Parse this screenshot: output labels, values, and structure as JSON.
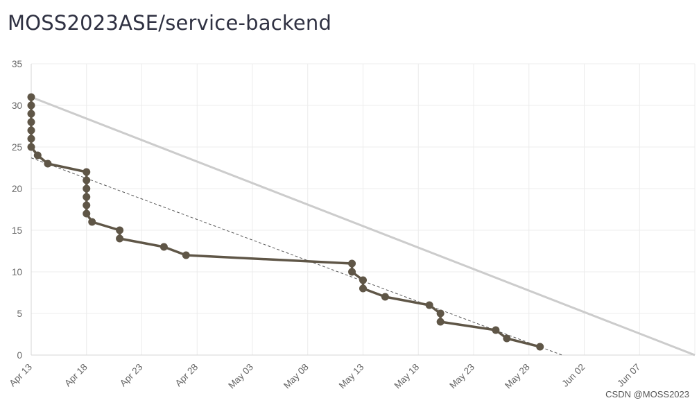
{
  "page": {
    "title": "MOSS2023ASE/service-backend",
    "watermark": "CSDN @MOSS2023"
  },
  "chart_data": {
    "type": "line",
    "title": "MOSS2023ASE/service-backend",
    "xlabel": "",
    "ylabel": "",
    "x_start_label": "Apr 13",
    "x_tick_labels": [
      "Apr 13",
      "Apr 18",
      "Apr 23",
      "Apr 28",
      "May 03",
      "May 08",
      "May 13",
      "May 18",
      "May 23",
      "May 28",
      "Jun 02",
      "Jun 07"
    ],
    "xlim": [
      "2023-04-13",
      "2023-06-12"
    ],
    "ylim": [
      0,
      35
    ],
    "y_ticks": [
      0,
      5,
      10,
      15,
      20,
      25,
      30,
      35
    ],
    "grid": true,
    "colors": {
      "actual": "#5f5647",
      "ideal": "#cccccc",
      "trend": "#555555"
    },
    "series": [
      {
        "style": "actual",
        "points": [
          [
            "2023-04-13",
            31
          ],
          [
            "2023-04-13",
            30
          ],
          [
            "2023-04-13",
            29
          ],
          [
            "2023-04-13",
            28
          ],
          [
            "2023-04-13",
            27
          ],
          [
            "2023-04-13",
            26
          ],
          [
            "2023-04-13",
            25
          ],
          [
            "2023-04-13T14:00",
            24
          ],
          [
            "2023-04-14T12:00",
            23
          ],
          [
            "2023-04-18",
            22
          ],
          [
            "2023-04-18",
            21
          ],
          [
            "2023-04-18",
            20
          ],
          [
            "2023-04-18",
            19
          ],
          [
            "2023-04-18",
            18
          ],
          [
            "2023-04-18",
            17
          ],
          [
            "2023-04-18T12:00",
            16
          ],
          [
            "2023-04-21",
            15
          ],
          [
            "2023-04-21",
            14
          ],
          [
            "2023-04-25",
            13
          ],
          [
            "2023-04-27",
            12
          ],
          [
            "2023-05-12",
            11
          ],
          [
            "2023-05-12",
            10
          ],
          [
            "2023-05-13",
            9
          ],
          [
            "2023-05-13",
            8
          ],
          [
            "2023-05-15",
            7
          ],
          [
            "2023-05-19",
            6
          ],
          [
            "2023-05-20",
            5
          ],
          [
            "2023-05-20",
            4
          ],
          [
            "2023-05-25",
            3
          ],
          [
            "2023-05-26",
            2
          ],
          [
            "2023-05-29",
            1
          ]
        ]
      },
      {
        "style": "ideal",
        "points": [
          [
            "2023-04-13",
            31
          ],
          [
            "2023-06-12",
            0
          ]
        ]
      },
      {
        "style": "trend",
        "points": [
          [
            "2023-04-13",
            23.7
          ],
          [
            "2023-05-31",
            0
          ]
        ]
      }
    ]
  }
}
